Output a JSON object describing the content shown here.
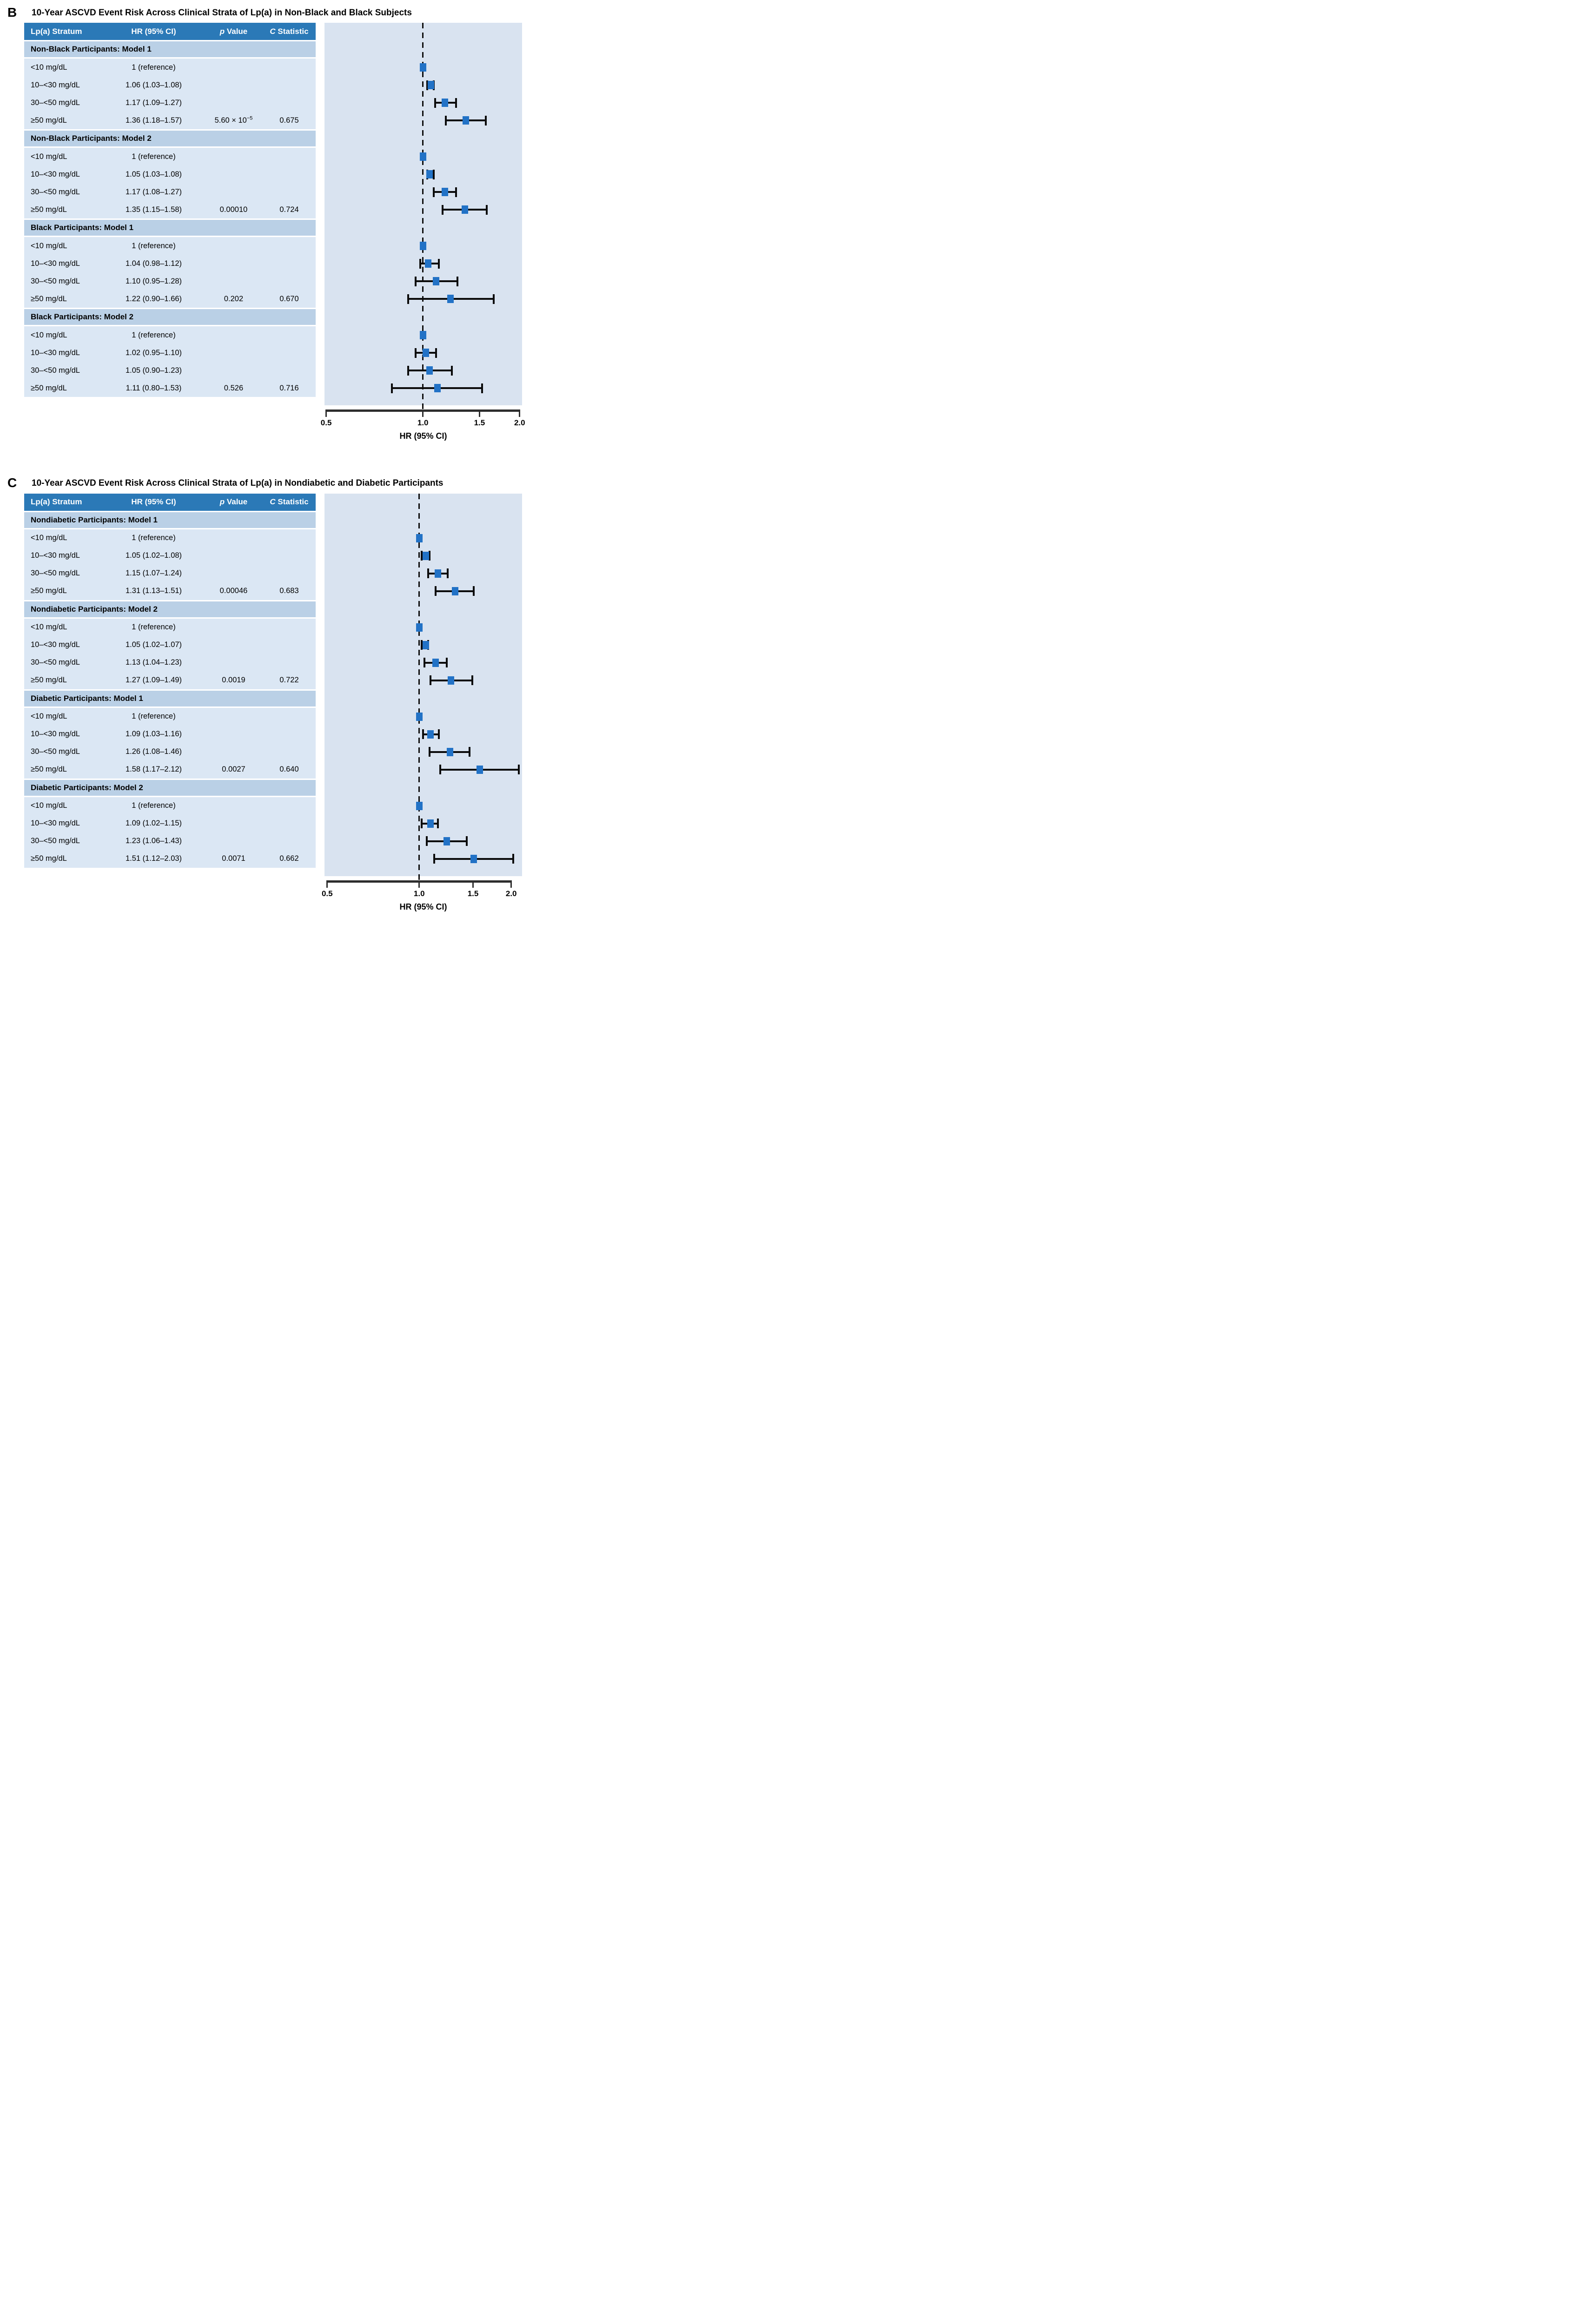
{
  "colors": {
    "header_bg": "#2b79b7",
    "header_text": "#ffffff",
    "band_bg": "#bad0e6",
    "row_bg": "#dbe7f4",
    "plot_bg": "#d9e3f0",
    "marker": "#2272c6",
    "error_bar": "#0b0b0b",
    "ref_line": "#0b0b0b",
    "axis": "#2d2d2d",
    "text": "#000000"
  },
  "chart_data": [
    {
      "type": "scatter",
      "subtype": "forest-plot",
      "panel_label": "B",
      "title": "10-Year ASCVD Event Risk Across Clinical Strata of Lp(a) in Non-Black and Black Subjects",
      "columns": [
        {
          "label": "Lp(a) Stratum",
          "italic_first": false
        },
        {
          "label": "HR (95% CI)",
          "italic_first": false
        },
        {
          "label": "p Value",
          "italic_first": true
        },
        {
          "label": "C Statistic",
          "italic_first": true
        }
      ],
      "xlabel": "HR (95% CI)",
      "xscale": "log",
      "xlim": [
        0.494,
        2.035
      ],
      "xticks": [
        0.5,
        1.0,
        1.5,
        2.0
      ],
      "xtick_labels": [
        "0.5",
        "1.0",
        "1.5",
        "2.0"
      ],
      "ref_line": 1.0,
      "grid": false,
      "legend": "none",
      "groups": [
        {
          "name": "Non-Black Participants: Model 1",
          "rows": [
            {
              "stratum": "<10 mg/dL",
              "hr_label": "1 (reference)",
              "hr": 1.0,
              "ci": null,
              "p": "",
              "p_exp": "",
              "c": ""
            },
            {
              "stratum": "10–<30 mg/dL",
              "hr_label": "1.06 (1.03–1.08)",
              "hr": 1.06,
              "ci": [
                1.03,
                1.08
              ],
              "p": "",
              "p_exp": "",
              "c": ""
            },
            {
              "stratum": "30–<50 mg/dL",
              "hr_label": "1.17 (1.09–1.27)",
              "hr": 1.17,
              "ci": [
                1.09,
                1.27
              ],
              "p": "",
              "p_exp": "",
              "c": ""
            },
            {
              "stratum": "≥50 mg/dL",
              "hr_label": "1.36 (1.18–1.57)",
              "hr": 1.36,
              "ci": [
                1.18,
                1.57
              ],
              "p": "5.60 × 10",
              "p_exp": "−5",
              "c": "0.675"
            }
          ]
        },
        {
          "name": "Non-Black Participants: Model 2",
          "rows": [
            {
              "stratum": "<10 mg/dL",
              "hr_label": "1 (reference)",
              "hr": 1.0,
              "ci": null,
              "p": "",
              "p_exp": "",
              "c": ""
            },
            {
              "stratum": "10–<30 mg/dL",
              "hr_label": "1.05 (1.03–1.08)",
              "hr": 1.05,
              "ci": [
                1.03,
                1.08
              ],
              "p": "",
              "p_exp": "",
              "c": ""
            },
            {
              "stratum": "30–<50 mg/dL",
              "hr_label": "1.17 (1.08–1.27)",
              "hr": 1.17,
              "ci": [
                1.08,
                1.27
              ],
              "p": "",
              "p_exp": "",
              "c": ""
            },
            {
              "stratum": "≥50 mg/dL",
              "hr_label": "1.35 (1.15–1.58)",
              "hr": 1.35,
              "ci": [
                1.15,
                1.58
              ],
              "p": "0.00010",
              "p_exp": "",
              "c": "0.724"
            }
          ]
        },
        {
          "name": "Black Participants: Model 1",
          "rows": [
            {
              "stratum": "<10 mg/dL",
              "hr_label": "1 (reference)",
              "hr": 1.0,
              "ci": null,
              "p": "",
              "p_exp": "",
              "c": ""
            },
            {
              "stratum": "10–<30 mg/dL",
              "hr_label": "1.04 (0.98–1.12)",
              "hr": 1.04,
              "ci": [
                0.98,
                1.12
              ],
              "p": "",
              "p_exp": "",
              "c": ""
            },
            {
              "stratum": "30–<50 mg/dL",
              "hr_label": "1.10 (0.95–1.28)",
              "hr": 1.1,
              "ci": [
                0.95,
                1.28
              ],
              "p": "",
              "p_exp": "",
              "c": ""
            },
            {
              "stratum": "≥50 mg/dL",
              "hr_label": "1.22 (0.90–1.66)",
              "hr": 1.22,
              "ci": [
                0.9,
                1.66
              ],
              "p": "0.202",
              "p_exp": "",
              "c": "0.670"
            }
          ]
        },
        {
          "name": "Black Participants: Model 2",
          "rows": [
            {
              "stratum": "<10 mg/dL",
              "hr_label": "1 (reference)",
              "hr": 1.0,
              "ci": null,
              "p": "",
              "p_exp": "",
              "c": ""
            },
            {
              "stratum": "10–<30 mg/dL",
              "hr_label": "1.02 (0.95–1.10)",
              "hr": 1.02,
              "ci": [
                0.95,
                1.1
              ],
              "p": "",
              "p_exp": "",
              "c": ""
            },
            {
              "stratum": "30–<50 mg/dL",
              "hr_label": "1.05 (0.90–1.23)",
              "hr": 1.05,
              "ci": [
                0.9,
                1.23
              ],
              "p": "",
              "p_exp": "",
              "c": ""
            },
            {
              "stratum": "≥50 mg/dL",
              "hr_label": "1.11 (0.80–1.53)",
              "hr": 1.11,
              "ci": [
                0.8,
                1.53
              ],
              "p": "0.526",
              "p_exp": "",
              "c": "0.716"
            }
          ]
        }
      ]
    },
    {
      "type": "scatter",
      "subtype": "forest-plot",
      "panel_label": "C",
      "title": "10-Year ASCVD Event Risk Across Clinical Strata of Lp(a) in Nondiabetic and Diabetic Participants",
      "columns": [
        {
          "label": "Lp(a) Stratum",
          "italic_first": false
        },
        {
          "label": "HR (95% CI)",
          "italic_first": false
        },
        {
          "label": "p Value",
          "italic_first": true
        },
        {
          "label": "C Statistic",
          "italic_first": true
        }
      ],
      "xlabel": "HR (95% CI)",
      "xscale": "log",
      "xlim": [
        0.49,
        2.17
      ],
      "xticks": [
        0.5,
        1.0,
        1.5,
        2.0
      ],
      "xtick_labels": [
        "0.5",
        "1.0",
        "1.5",
        "2.0"
      ],
      "ref_line": 1.0,
      "grid": false,
      "legend": "none",
      "groups": [
        {
          "name": "Nondiabetic Participants: Model 1",
          "rows": [
            {
              "stratum": "<10 mg/dL",
              "hr_label": "1 (reference)",
              "hr": 1.0,
              "ci": null,
              "p": "",
              "p_exp": "",
              "c": ""
            },
            {
              "stratum": "10–<30 mg/dL",
              "hr_label": "1.05 (1.02–1.08)",
              "hr": 1.05,
              "ci": [
                1.02,
                1.08
              ],
              "p": "",
              "p_exp": "",
              "c": ""
            },
            {
              "stratum": "30–<50 mg/dL",
              "hr_label": "1.15 (1.07–1.24)",
              "hr": 1.15,
              "ci": [
                1.07,
                1.24
              ],
              "p": "",
              "p_exp": "",
              "c": ""
            },
            {
              "stratum": "≥50 mg/dL",
              "hr_label": "1.31 (1.13–1.51)",
              "hr": 1.31,
              "ci": [
                1.13,
                1.51
              ],
              "p": "0.00046",
              "p_exp": "",
              "c": "0.683"
            }
          ]
        },
        {
          "name": "Nondiabetic Participants: Model 2",
          "rows": [
            {
              "stratum": "<10 mg/dL",
              "hr_label": "1 (reference)",
              "hr": 1.0,
              "ci": null,
              "p": "",
              "p_exp": "",
              "c": ""
            },
            {
              "stratum": "10–<30 mg/dL",
              "hr_label": "1.05 (1.02–1.07)",
              "hr": 1.05,
              "ci": [
                1.02,
                1.07
              ],
              "p": "",
              "p_exp": "",
              "c": ""
            },
            {
              "stratum": "30–<50 mg/dL",
              "hr_label": "1.13 (1.04–1.23)",
              "hr": 1.13,
              "ci": [
                1.04,
                1.23
              ],
              "p": "",
              "p_exp": "",
              "c": ""
            },
            {
              "stratum": "≥50 mg/dL",
              "hr_label": "1.27 (1.09–1.49)",
              "hr": 1.27,
              "ci": [
                1.09,
                1.49
              ],
              "p": "0.0019",
              "p_exp": "",
              "c": "0.722"
            }
          ]
        },
        {
          "name": "Diabetic Participants: Model 1",
          "rows": [
            {
              "stratum": "<10 mg/dL",
              "hr_label": "1 (reference)",
              "hr": 1.0,
              "ci": null,
              "p": "",
              "p_exp": "",
              "c": ""
            },
            {
              "stratum": "10–<30 mg/dL",
              "hr_label": "1.09 (1.03–1.16)",
              "hr": 1.09,
              "ci": [
                1.03,
                1.16
              ],
              "p": "",
              "p_exp": "",
              "c": ""
            },
            {
              "stratum": "30–<50 mg/dL",
              "hr_label": "1.26 (1.08–1.46)",
              "hr": 1.26,
              "ci": [
                1.08,
                1.46
              ],
              "p": "",
              "p_exp": "",
              "c": ""
            },
            {
              "stratum": "≥50 mg/dL",
              "hr_label": "1.58 (1.17–2.12)",
              "hr": 1.58,
              "ci": [
                1.17,
                2.12
              ],
              "p": "0.0027",
              "p_exp": "",
              "c": "0.640"
            }
          ]
        },
        {
          "name": "Diabetic Participants: Model 2",
          "rows": [
            {
              "stratum": "<10 mg/dL",
              "hr_label": "1 (reference)",
              "hr": 1.0,
              "ci": null,
              "p": "",
              "p_exp": "",
              "c": ""
            },
            {
              "stratum": "10–<30 mg/dL",
              "hr_label": "1.09 (1.02–1.15)",
              "hr": 1.09,
              "ci": [
                1.02,
                1.15
              ],
              "p": "",
              "p_exp": "",
              "c": ""
            },
            {
              "stratum": "30–<50 mg/dL",
              "hr_label": "1.23 (1.06–1.43)",
              "hr": 1.23,
              "ci": [
                1.06,
                1.43
              ],
              "p": "",
              "p_exp": "",
              "c": ""
            },
            {
              "stratum": "≥50 mg/dL",
              "hr_label": "1.51 (1.12–2.03)",
              "hr": 1.51,
              "ci": [
                1.12,
                2.03
              ],
              "p": "0.0071",
              "p_exp": "",
              "c": "0.662"
            }
          ]
        }
      ]
    }
  ]
}
